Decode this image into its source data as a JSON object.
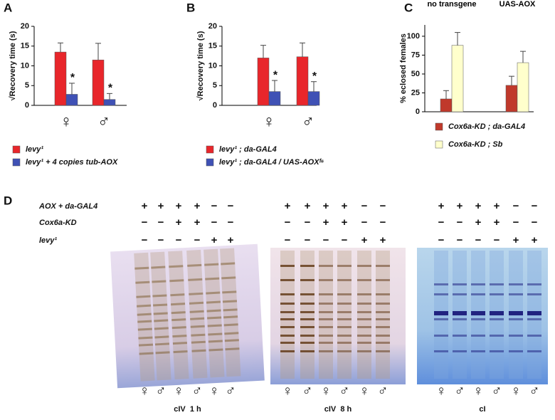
{
  "chart_data": [
    {
      "type": "bar",
      "panel": "A",
      "ylabel": "√Recovery time (s)",
      "categories": [
        "♀",
        "♂"
      ],
      "ylim": [
        0,
        20
      ],
      "yticks": [
        0,
        5,
        10,
        15,
        20
      ],
      "series": [
        {
          "name": "levy¹",
          "color": "#e8262b",
          "values": [
            13.5,
            11.5
          ],
          "errors": [
            2.3,
            4.2
          ]
        },
        {
          "name": "levy¹ + 4 copies tub-AOX",
          "color": "#3f51b5",
          "values": [
            2.8,
            1.5
          ],
          "errors": [
            2.8,
            1.5
          ],
          "annotations": [
            "*",
            "*"
          ]
        }
      ]
    },
    {
      "type": "bar",
      "panel": "B",
      "ylabel": "√Recovery time (s)",
      "categories": [
        "♀",
        "♂"
      ],
      "ylim": [
        0,
        20
      ],
      "yticks": [
        0,
        5,
        10,
        15,
        20
      ],
      "series": [
        {
          "name": "levy¹ ; da-GAL4",
          "color": "#e8262b",
          "values": [
            12,
            12.3
          ],
          "errors": [
            3.2,
            3.5
          ]
        },
        {
          "name": "levy¹ ; da-GAL4 / UAS-AOXᶠ⁶",
          "color": "#3f51b5",
          "values": [
            3.5,
            3.5
          ],
          "errors": [
            2.8,
            2.5
          ],
          "annotations": [
            "*",
            "*"
          ]
        }
      ]
    },
    {
      "type": "bar",
      "panel": "C",
      "ylabel": "% eclosed females",
      "categories": [
        "no transgene",
        "UAS-AOX"
      ],
      "ylim": [
        0,
        115
      ],
      "yticks": [
        0,
        25,
        50,
        75,
        100
      ],
      "series": [
        {
          "name": "Cox6a-KD ; da-GAL4",
          "color": "#c0392b",
          "values": [
            17,
            35
          ],
          "errors": [
            11,
            12
          ]
        },
        {
          "name": "Cox6a-KD ; Sb",
          "color": "#ffffcc",
          "values": [
            88,
            65
          ],
          "errors": [
            17,
            15
          ]
        }
      ]
    }
  ],
  "gel_panel": {
    "letter": "D",
    "rows": [
      "AOX + da-GAL4",
      "Cox6a-KD",
      "levy¹"
    ],
    "gels": [
      {
        "caption": "cIV  1 h",
        "signs": [
          [
            "+",
            "+",
            "+",
            "+",
            "−",
            "−"
          ],
          [
            "−",
            "−",
            "+",
            "+",
            "−",
            "−"
          ],
          [
            "−",
            "−",
            "−",
            "−",
            "+",
            "+"
          ]
        ],
        "lanes": [
          "♀",
          "♂",
          "♀",
          "♂",
          "♀",
          "♂"
        ]
      },
      {
        "caption": "cIV  8 h",
        "signs": [
          [
            "+",
            "+",
            "+",
            "+",
            "−",
            "−"
          ],
          [
            "−",
            "−",
            "+",
            "+",
            "−",
            "−"
          ],
          [
            "−",
            "−",
            "−",
            "−",
            "+",
            "+"
          ]
        ],
        "lanes": [
          "♀",
          "♂",
          "♀",
          "♂",
          "♀",
          "♂"
        ]
      },
      {
        "caption": "cI",
        "signs": [
          [
            "+",
            "+",
            "+",
            "+",
            "−",
            "−"
          ],
          [
            "−",
            "−",
            "+",
            "+",
            "−",
            "−"
          ],
          [
            "−",
            "−",
            "−",
            "−",
            "+",
            "+"
          ]
        ],
        "lanes": [
          "♀",
          "♂",
          "♀",
          "♂",
          "♀",
          "♂"
        ]
      }
    ]
  }
}
